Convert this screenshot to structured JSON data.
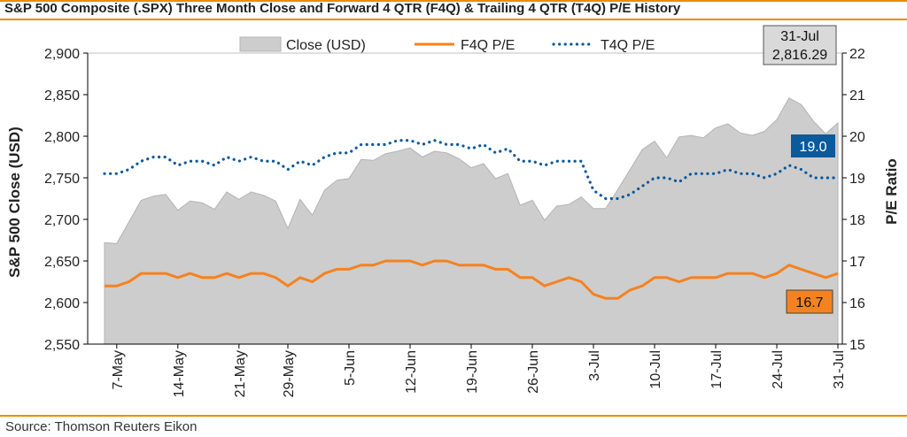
{
  "header": {
    "title": "S&P 500 Composite (.SPX) Three Month Close and Forward 4 QTR (F4Q) & Trailing 4 QTR (T4Q) P/E History"
  },
  "footer": {
    "source": "Source: Thomson Reuters Eikon"
  },
  "colors": {
    "accent_rule": "#f08a00",
    "close_fill": "#cdcdcd",
    "close_stroke": "#b3b3b3",
    "f4q": "#f58220",
    "t4q": "#0a5a9c"
  },
  "chart_data": {
    "type": "area",
    "title": "S&P 500 Composite (.SPX) Three Month Close and Forward 4 QTR (F4Q) & Trailing 4 QTR (T4Q) P/E History",
    "legend": {
      "placement": "top",
      "entries": [
        "Close (USD)",
        "F4Q P/E",
        "T4Q P/E"
      ]
    },
    "y_left": {
      "label": "S&P 500 Close (USD)",
      "range": [
        2550,
        2900
      ],
      "ticks": [
        2550,
        2600,
        2650,
        2700,
        2750,
        2800,
        2850,
        2900
      ],
      "tick_labels": [
        "2,550",
        "2,600",
        "2,650",
        "2,700",
        "2,750",
        "2,800",
        "2,850",
        "2,900"
      ]
    },
    "y_right": {
      "label": "P/E Ratio",
      "range": [
        15,
        22
      ],
      "ticks": [
        15,
        16,
        17,
        18,
        19,
        20,
        21,
        22
      ],
      "tick_labels": [
        "15",
        "16",
        "17",
        "18",
        "19",
        "20",
        "21",
        "22"
      ]
    },
    "x_ticks": [
      {
        "label": "7-May",
        "index": 1
      },
      {
        "label": "14-May",
        "index": 6
      },
      {
        "label": "21-May",
        "index": 11
      },
      {
        "label": "29-May",
        "index": 15
      },
      {
        "label": "5-Jun",
        "index": 20
      },
      {
        "label": "12-Jun",
        "index": 25
      },
      {
        "label": "19-Jun",
        "index": 30
      },
      {
        "label": "26-Jun",
        "index": 35
      },
      {
        "label": "3-Jul",
        "index": 40
      },
      {
        "label": "10-Jul",
        "index": 45
      },
      {
        "label": "17-Jul",
        "index": 50
      },
      {
        "label": "24-Jul",
        "index": 55
      },
      {
        "label": "31-Jul",
        "index": 60
      }
    ],
    "x_count": 61,
    "series": [
      {
        "name": "Close (USD)",
        "axis": "left",
        "style": "area",
        "values": [
          2672,
          2671,
          2697,
          2723,
          2728,
          2730,
          2711,
          2722,
          2720,
          2712,
          2733,
          2724,
          2733,
          2729,
          2722,
          2689,
          2724,
          2705,
          2735,
          2747,
          2749,
          2772,
          2771,
          2779,
          2782,
          2786,
          2775,
          2782,
          2780,
          2773,
          2762,
          2767,
          2749,
          2755,
          2717,
          2723,
          2699,
          2716,
          2718,
          2727,
          2713,
          2713,
          2736,
          2760,
          2784,
          2794,
          2774,
          2799,
          2801,
          2798,
          2810,
          2815,
          2804,
          2801,
          2806,
          2820,
          2846,
          2838,
          2818,
          2803,
          2816
        ]
      },
      {
        "name": "F4Q P/E",
        "axis": "right",
        "style": "solid",
        "values": [
          16.4,
          16.4,
          16.5,
          16.7,
          16.7,
          16.7,
          16.6,
          16.7,
          16.6,
          16.6,
          16.7,
          16.6,
          16.7,
          16.7,
          16.6,
          16.4,
          16.6,
          16.5,
          16.7,
          16.8,
          16.8,
          16.9,
          16.9,
          17.0,
          17.0,
          17.0,
          16.9,
          17.0,
          17.0,
          16.9,
          16.9,
          16.9,
          16.8,
          16.8,
          16.6,
          16.6,
          16.4,
          16.5,
          16.6,
          16.5,
          16.2,
          16.1,
          16.1,
          16.3,
          16.4,
          16.6,
          16.6,
          16.5,
          16.6,
          16.6,
          16.6,
          16.7,
          16.7,
          16.7,
          16.6,
          16.7,
          16.9,
          16.8,
          16.7,
          16.6,
          16.7
        ]
      },
      {
        "name": "T4Q P/E",
        "axis": "right",
        "style": "dotted",
        "values": [
          19.1,
          19.1,
          19.2,
          19.4,
          19.5,
          19.5,
          19.3,
          19.4,
          19.4,
          19.3,
          19.5,
          19.4,
          19.5,
          19.4,
          19.4,
          19.2,
          19.4,
          19.3,
          19.5,
          19.6,
          19.6,
          19.8,
          19.8,
          19.8,
          19.9,
          19.9,
          19.8,
          19.9,
          19.8,
          19.8,
          19.7,
          19.8,
          19.6,
          19.7,
          19.4,
          19.4,
          19.3,
          19.4,
          19.4,
          19.4,
          18.7,
          18.5,
          18.5,
          18.6,
          18.8,
          19.0,
          19.0,
          18.9,
          19.1,
          19.1,
          19.1,
          19.2,
          19.1,
          19.1,
          19.0,
          19.1,
          19.3,
          19.2,
          19.0,
          19.0,
          19.0
        ]
      }
    ],
    "callouts": {
      "latest_date": "31-Jul",
      "latest_close": "2,816.29",
      "latest_t4q": "19.0",
      "latest_f4q": "16.7"
    }
  }
}
